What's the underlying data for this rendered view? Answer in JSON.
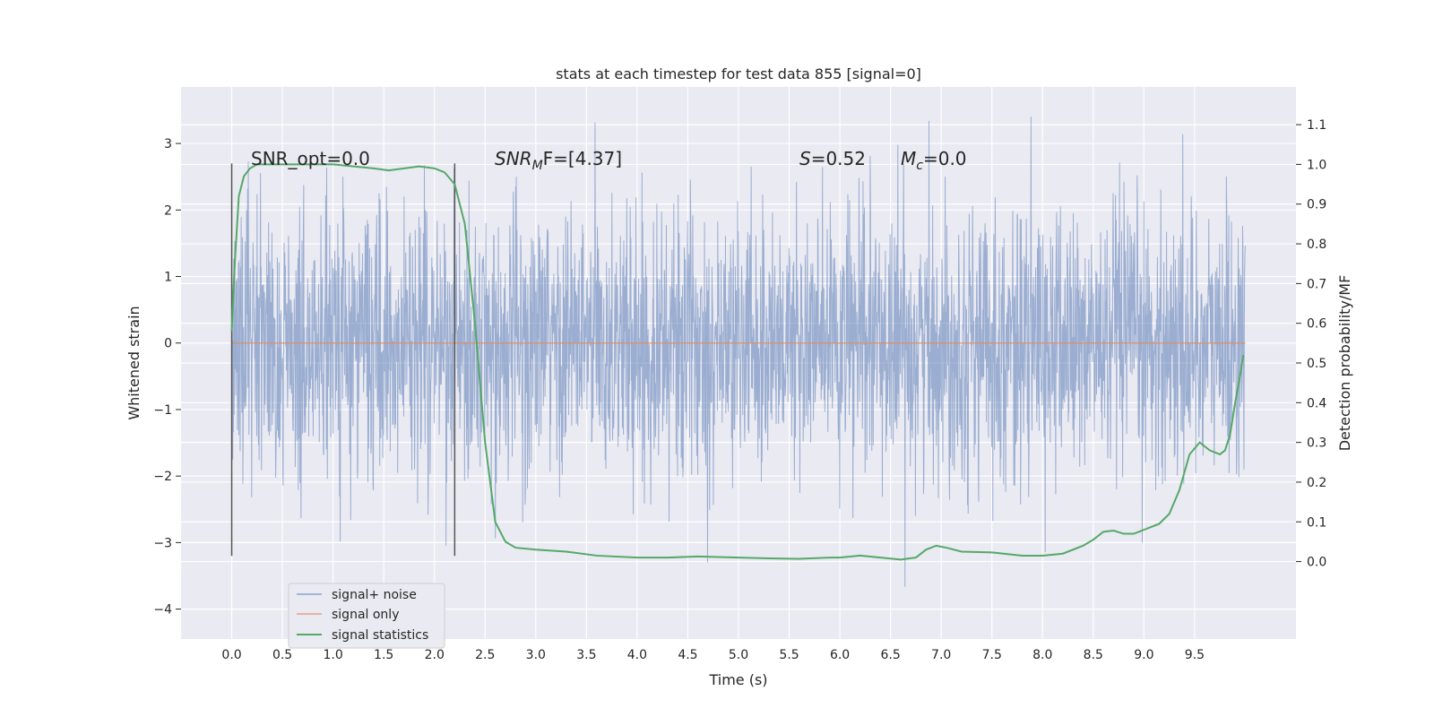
{
  "chart_data": {
    "type": "line",
    "title": "stats at each timestep for test data 855 [signal=0]",
    "xlabel": "Time (s)",
    "ylabel": "Whitened strain",
    "y2label": "Detection probability/MF",
    "xlim": [
      -0.5,
      10.5
    ],
    "ylim": [
      -4.45,
      3.85
    ],
    "y2lim": [
      -0.195,
      1.195
    ],
    "xticks": [
      "0.0",
      "0.5",
      "1.0",
      "1.5",
      "2.0",
      "2.5",
      "3.0",
      "3.5",
      "4.0",
      "4.5",
      "5.0",
      "5.5",
      "6.0",
      "6.5",
      "7.0",
      "7.5",
      "8.0",
      "8.5",
      "9.0",
      "9.5"
    ],
    "yticks": [
      "3",
      "2",
      "1",
      "0",
      "−1",
      "−2",
      "−3",
      "−4"
    ],
    "y2ticks": [
      "1.1",
      "1.0",
      "0.9",
      "0.8",
      "0.7",
      "0.6",
      "0.5",
      "0.4",
      "0.3",
      "0.2",
      "0.1",
      "0.0"
    ],
    "grid": true,
    "legend_position": "lower-left",
    "annotations": {
      "snr_opt": "SNR_opt=0.0",
      "snr_mf_sym": "SNR",
      "snr_mf_sub": "M",
      "snr_mf_rest": "F=[4.37]",
      "s_sym": "S",
      "s_rest": "=0.52",
      "mc_sym": "M",
      "mc_sub": "c",
      "mc_rest": "=0.0"
    },
    "vlines": [
      {
        "x": 0.0,
        "y_range": [
          -3.2,
          2.7
        ]
      },
      {
        "x": 2.2,
        "y_range": [
          -3.2,
          2.7
        ]
      }
    ],
    "series": [
      {
        "name": "signal+ noise",
        "color": "#4c72b0",
        "description_range": [
          -4.05,
          3.45
        ],
        "x_range": [
          0.0,
          10.0
        ]
      },
      {
        "name": "signal only",
        "color": "#dd8452",
        "constant_value": 0.0,
        "x_range": [
          0.0,
          10.0
        ]
      },
      {
        "name": "signal statistics",
        "color": "#55a868",
        "axis": "right",
        "x": [
          0.0,
          0.03,
          0.07,
          0.12,
          0.18,
          0.25,
          0.4,
          0.6,
          0.8,
          1.0,
          1.2,
          1.4,
          1.55,
          1.7,
          1.85,
          2.0,
          2.1,
          2.2,
          2.3,
          2.4,
          2.5,
          2.6,
          2.7,
          2.8,
          3.0,
          3.3,
          3.6,
          4.0,
          4.3,
          4.6,
          5.0,
          5.3,
          5.6,
          5.9,
          6.0,
          6.2,
          6.4,
          6.6,
          6.75,
          6.85,
          6.95,
          7.05,
          7.2,
          7.5,
          7.8,
          8.0,
          8.2,
          8.4,
          8.5,
          8.6,
          8.7,
          8.8,
          8.9,
          9.0,
          9.15,
          9.25,
          9.35,
          9.45,
          9.55,
          9.65,
          9.75,
          9.8,
          9.85,
          9.9,
          9.95,
          9.98
        ],
        "values": [
          0.58,
          0.75,
          0.92,
          0.97,
          0.99,
          1.0,
          1.0,
          1.0,
          1.0,
          1.0,
          0.995,
          0.99,
          0.985,
          0.99,
          0.995,
          0.99,
          0.98,
          0.95,
          0.85,
          0.6,
          0.3,
          0.1,
          0.05,
          0.035,
          0.03,
          0.025,
          0.015,
          0.01,
          0.01,
          0.013,
          0.01,
          0.008,
          0.007,
          0.01,
          0.01,
          0.015,
          0.01,
          0.005,
          0.01,
          0.03,
          0.04,
          0.035,
          0.025,
          0.023,
          0.015,
          0.015,
          0.02,
          0.04,
          0.055,
          0.075,
          0.078,
          0.07,
          0.07,
          0.08,
          0.095,
          0.12,
          0.18,
          0.27,
          0.3,
          0.28,
          0.27,
          0.28,
          0.32,
          0.4,
          0.47,
          0.52
        ]
      }
    ]
  }
}
